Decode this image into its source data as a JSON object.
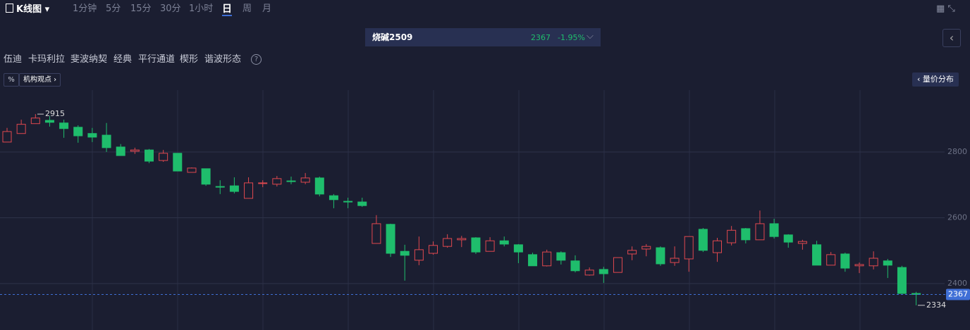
{
  "toolbar": {
    "chart_kind": "K线图",
    "periods": [
      "1分钟",
      "5分",
      "15分",
      "30分",
      "1小时",
      "日",
      "周",
      "月"
    ],
    "active_period": 5
  },
  "symbol": {
    "name": "烧碱2509",
    "change": "-1.95%"
  },
  "tools": [
    "伍迪",
    "卡玛利拉",
    "斐波纳契",
    "经典",
    "平行通道",
    "楔形",
    "谐波形态"
  ],
  "buttons": {
    "views": "机构观点",
    "volume_profile": "量价分布"
  },
  "chart_data": {
    "type": "candlestick",
    "open": [
      2830,
      2856,
      2886,
      2896,
      2888,
      2875,
      2856,
      2851,
      2815,
      2802,
      2806,
      2774,
      2796,
      2738,
      2749,
      2695,
      2697,
      2659,
      2704,
      2702,
      2712,
      2708,
      2721,
      2667,
      2650,
      2648,
      2522,
      2580,
      2498,
      2471,
      2492,
      2513,
      2533,
      2539,
      2498,
      2530,
      2518,
      2488,
      2454,
      2494,
      2469,
      2426,
      2443,
      2434,
      2490,
      2505,
      2509,
      2464,
      2475,
      2565,
      2494,
      2524,
      2567,
      2533,
      2582,
      2548,
      2522,
      2518,
      2456,
      2490,
      2454,
      2454,
      2469,
      2449,
      2370
    ],
    "close": [
      2862,
      2884,
      2903,
      2890,
      2871,
      2849,
      2845,
      2813,
      2789,
      2806,
      2772,
      2796,
      2742,
      2751,
      2702,
      2693,
      2680,
      2706,
      2706,
      2719,
      2710,
      2721,
      2672,
      2655,
      2648,
      2637,
      2582,
      2492,
      2486,
      2503,
      2516,
      2537,
      2537,
      2496,
      2530,
      2520,
      2496,
      2454,
      2496,
      2471,
      2439,
      2441,
      2430,
      2479,
      2501,
      2513,
      2460,
      2477,
      2543,
      2501,
      2530,
      2562,
      2533,
      2582,
      2543,
      2526,
      2528,
      2456,
      2488,
      2447,
      2458,
      2477,
      2456,
      2370,
      2367
    ],
    "high": [
      2873,
      2898,
      2915,
      2909,
      2898,
      2881,
      2873,
      2888,
      2824,
      2813,
      2809,
      2806,
      2796,
      2753,
      2749,
      2714,
      2723,
      2723,
      2714,
      2727,
      2725,
      2736,
      2725,
      2672,
      2661,
      2661,
      2608,
      2582,
      2518,
      2543,
      2528,
      2550,
      2545,
      2541,
      2541,
      2543,
      2520,
      2494,
      2503,
      2498,
      2486,
      2449,
      2451,
      2479,
      2513,
      2520,
      2513,
      2513,
      2543,
      2569,
      2539,
      2575,
      2569,
      2622,
      2597,
      2550,
      2533,
      2530,
      2496,
      2494,
      2464,
      2498,
      2475,
      2454,
      2375
    ],
    "low": [
      2830,
      2856,
      2886,
      2877,
      2843,
      2828,
      2830,
      2800,
      2789,
      2794,
      2766,
      2770,
      2742,
      2738,
      2697,
      2672,
      2674,
      2659,
      2693,
      2695,
      2702,
      2702,
      2665,
      2629,
      2629,
      2633,
      2522,
      2481,
      2409,
      2456,
      2488,
      2509,
      2511,
      2490,
      2498,
      2513,
      2462,
      2454,
      2452,
      2458,
      2434,
      2424,
      2402,
      2434,
      2471,
      2483,
      2454,
      2454,
      2436,
      2496,
      2466,
      2516,
      2522,
      2533,
      2537,
      2509,
      2503,
      2456,
      2456,
      2436,
      2432,
      2443,
      2417,
      2370,
      2334
    ],
    "up_color": "#e0484f",
    "down_color": "#1fbd6c",
    "ylim": [
      2259,
      2988
    ],
    "yticks": [
      2400,
      2600,
      2800
    ],
    "grid": true,
    "last_price": 2367,
    "high_marker": 2915,
    "low_marker": 2334
  }
}
